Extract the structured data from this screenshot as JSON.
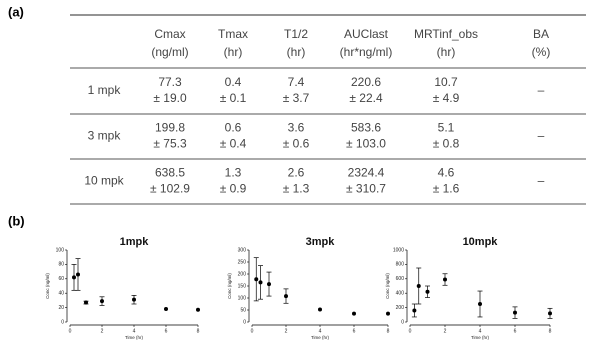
{
  "labels": {
    "a": "(a)",
    "b": "(b)"
  },
  "table": {
    "header": [
      {
        "name": "Cmax",
        "unit": "(ng/ml)"
      },
      {
        "name": "Tmax",
        "unit": "(hr)"
      },
      {
        "name": "T1/2",
        "unit": "(hr)"
      },
      {
        "name": "AUClast",
        "unit": "(hr*ng/ml)"
      },
      {
        "name": "MRTinf_obs",
        "unit": "(hr)"
      },
      {
        "name": "BA",
        "unit": "(%)"
      }
    ],
    "rows": [
      {
        "label": "1 mpk",
        "cells": [
          {
            "mean": "77.3",
            "sd": "± 19.0"
          },
          {
            "mean": "0.4",
            "sd": "± 0.1"
          },
          {
            "mean": "7.4",
            "sd": "± 3.7"
          },
          {
            "mean": "220.6",
            "sd": "± 22.4"
          },
          {
            "mean": "10.7",
            "sd": "± 4.9"
          },
          {
            "mean": "–"
          }
        ]
      },
      {
        "label": "3 mpk",
        "cells": [
          {
            "mean": "199.8",
            "sd": "± 75.3"
          },
          {
            "mean": "0.6",
            "sd": "± 0.4"
          },
          {
            "mean": "3.6",
            "sd": "± 0.6"
          },
          {
            "mean": "583.6",
            "sd": "± 103.0"
          },
          {
            "mean": "5.1",
            "sd": "± 0.8"
          },
          {
            "mean": "–"
          }
        ]
      },
      {
        "label": "10 mpk",
        "cells": [
          {
            "mean": "638.5",
            "sd": "± 102.9"
          },
          {
            "mean": "1.3",
            "sd": "± 0.9"
          },
          {
            "mean": "2.6",
            "sd": "± 1.3"
          },
          {
            "mean": "2324.4",
            "sd": "± 310.7"
          },
          {
            "mean": "4.6",
            "sd": "± 1.6"
          },
          {
            "mean": "–"
          }
        ]
      }
    ]
  },
  "chart_data": [
    {
      "type": "scatter",
      "title": "1mpk",
      "x_label": "Time (hr)",
      "y_label": "Conc (ng/ml)",
      "color": "#000000",
      "x": [
        0.25,
        0.5,
        1,
        2,
        4,
        6,
        8
      ],
      "values": [
        62,
        66,
        27,
        29,
        31,
        18,
        17
      ],
      "errors": [
        18,
        22,
        2,
        6,
        6,
        null,
        null
      ],
      "xlim": [
        0,
        8
      ],
      "xticks": [
        0,
        2,
        4,
        6,
        8
      ],
      "ylim": [
        0,
        100
      ],
      "yticks": [
        0,
        20,
        40,
        60,
        80,
        100
      ]
    },
    {
      "type": "scatter",
      "title": "3mpk",
      "x_label": "Time (hr)",
      "y_label": "Conc (ng/ml)",
      "color": "#000000",
      "x": [
        0.25,
        0.5,
        1,
        2,
        4,
        6,
        8
      ],
      "values": [
        178,
        165,
        158,
        108,
        52,
        35,
        35
      ],
      "errors": [
        90,
        70,
        50,
        30,
        null,
        null,
        null
      ],
      "xlim": [
        0,
        8
      ],
      "xticks": [
        0,
        2,
        4,
        6,
        8
      ],
      "ylim": [
        0,
        300
      ],
      "yticks": [
        0,
        50,
        100,
        150,
        200,
        250,
        300
      ]
    },
    {
      "type": "scatter",
      "title": "10mpk",
      "x_label": "Time (hr)",
      "y_label": "Conc (ng/ml)",
      "color": "#000000",
      "x": [
        0.25,
        0.5,
        1,
        2,
        4,
        6,
        8
      ],
      "values": [
        160,
        500,
        420,
        590,
        250,
        130,
        120
      ],
      "errors": [
        90,
        250,
        80,
        80,
        180,
        80,
        70
      ],
      "xlim": [
        0,
        8
      ],
      "xticks": [
        0,
        2,
        4,
        6,
        8
      ],
      "ylim": [
        0,
        1000
      ],
      "yticks": [
        0,
        200,
        400,
        600,
        800,
        1000
      ]
    }
  ]
}
